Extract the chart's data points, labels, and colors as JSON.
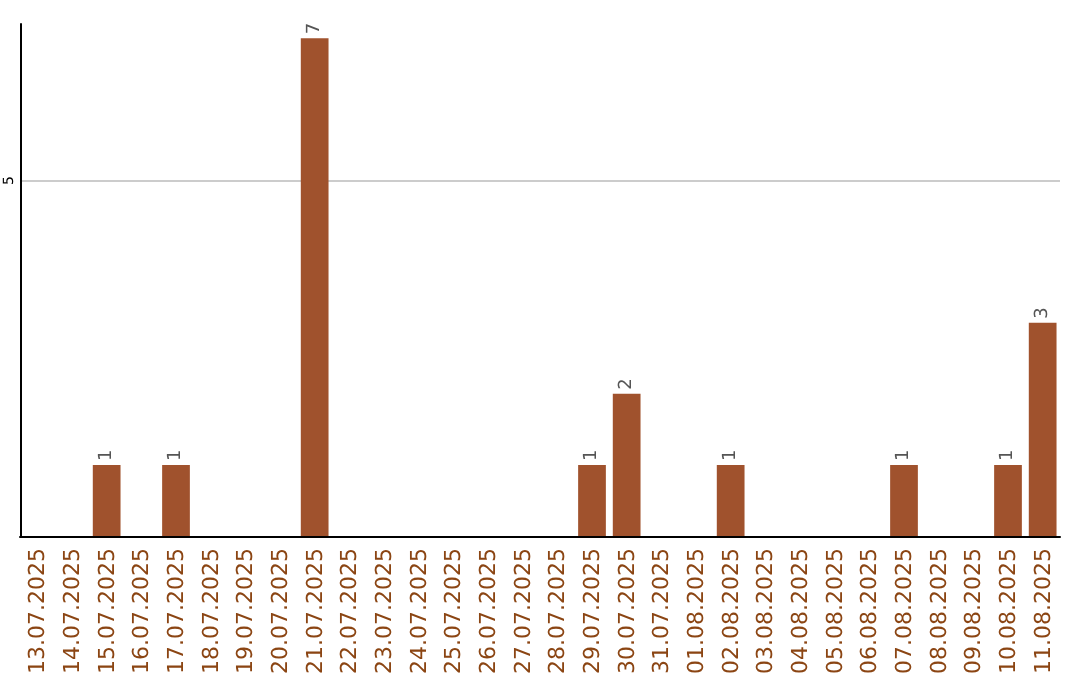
{
  "chart_data": {
    "type": "bar",
    "categories": [
      "13.07.2025",
      "14.07.2025",
      "15.07.2025",
      "16.07.2025",
      "17.07.2025",
      "18.07.2025",
      "19.07.2025",
      "20.07.2025",
      "21.07.2025",
      "22.07.2025",
      "23.07.2025",
      "24.07.2025",
      "25.07.2025",
      "26.07.2025",
      "27.07.2025",
      "28.07.2025",
      "29.07.2025",
      "30.07.2025",
      "31.07.2025",
      "01.08.2025",
      "02.08.2025",
      "03.08.2025",
      "04.08.2025",
      "05.08.2025",
      "06.08.2025",
      "07.08.2025",
      "08.08.2025",
      "09.08.2025",
      "10.08.2025",
      "11.08.2025"
    ],
    "values": [
      0,
      0,
      1,
      0,
      1,
      0,
      0,
      0,
      7,
      0,
      0,
      0,
      0,
      0,
      0,
      0,
      1,
      2,
      0,
      0,
      1,
      0,
      0,
      0,
      0,
      1,
      0,
      0,
      1,
      3
    ],
    "value_labels": [
      null,
      null,
      "1",
      null,
      "1",
      null,
      null,
      null,
      "7",
      null,
      null,
      null,
      null,
      null,
      null,
      null,
      "1",
      "2",
      null,
      null,
      "1",
      null,
      null,
      null,
      null,
      "1",
      null,
      null,
      "1",
      "3"
    ],
    "color": "#a0522d",
    "ylim": [
      0,
      7.2
    ],
    "yticks": [
      5
    ],
    "grid": "y"
  }
}
